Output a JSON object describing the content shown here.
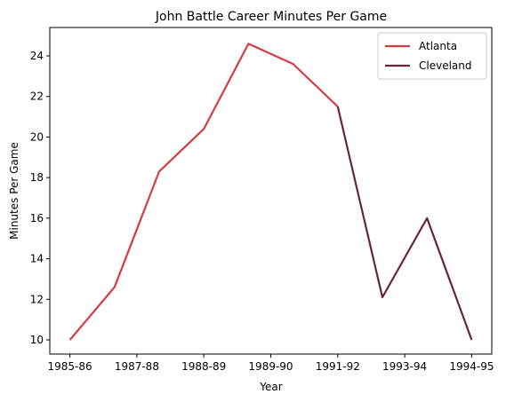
{
  "chart_data": {
    "type": "line",
    "title": "John Battle  Career Minutes Per Game",
    "xlabel": "Year",
    "ylabel": "Minutes Per Game",
    "x_tick_labels": [
      "1985-86",
      "1987-88",
      "1988-89",
      "1989-90",
      "1991-92",
      "1993-94",
      "1994-95"
    ],
    "x_tick_positions": [
      0,
      1.5,
      3,
      4.5,
      6,
      7.5,
      9
    ],
    "xlim": [
      -0.45,
      9.45
    ],
    "ylim": [
      9.3,
      25.4
    ],
    "y_ticks": [
      10,
      12,
      14,
      16,
      18,
      20,
      22,
      24
    ],
    "grid": false,
    "legend_position": "top-right",
    "series": [
      {
        "name": "Atlanta",
        "color": "#d63b3f",
        "x": [
          0,
          1,
          2,
          3,
          4,
          5,
          6
        ],
        "values": [
          10.0,
          12.6,
          18.3,
          20.4,
          24.6,
          23.6,
          21.5
        ]
      },
      {
        "name": "Cleveland",
        "color": "#6a2340",
        "x": [
          6,
          7,
          8,
          9
        ],
        "values": [
          21.5,
          12.1,
          16.0,
          10.0
        ]
      }
    ]
  }
}
